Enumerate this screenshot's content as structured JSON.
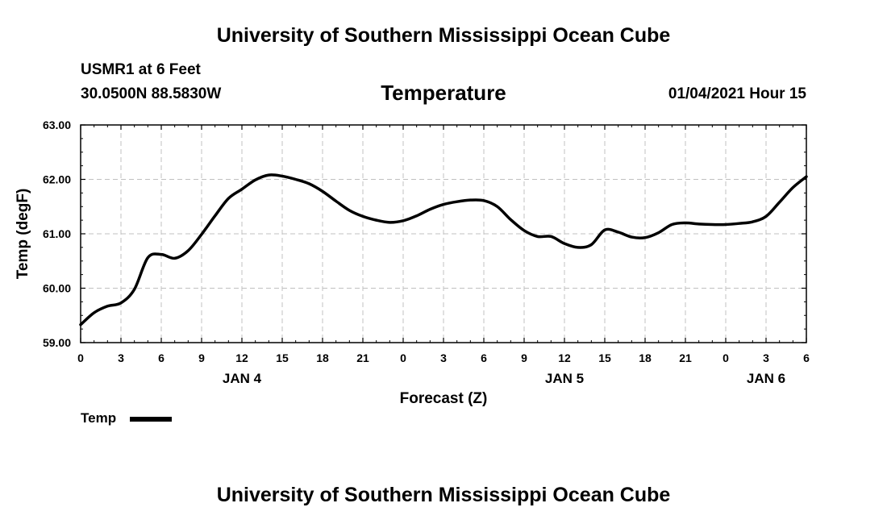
{
  "header": {
    "top_title": "University of Southern Mississippi Ocean Cube",
    "station": "USMR1 at 6 Feet",
    "coords": "30.0500N 88.5830W",
    "timestamp": "01/04/2021 Hour 15",
    "bottom_title": "University of Southern Mississippi Ocean Cube"
  },
  "colors": {
    "line": "#000000",
    "grid": "#c0c0c0"
  },
  "chart_data": {
    "type": "line",
    "title": "Temperature",
    "xlabel": "Forecast (Z)",
    "ylabel": "Temp (degF)",
    "ylim": [
      59.0,
      63.0
    ],
    "xlim": [
      0,
      54
    ],
    "y_ticks": [
      "59.00",
      "60.00",
      "61.00",
      "62.00",
      "63.00"
    ],
    "x_tick_hours": [
      0,
      3,
      6,
      9,
      12,
      15,
      18,
      21,
      24,
      27,
      30,
      33,
      36,
      39,
      42,
      45,
      48,
      51,
      54
    ],
    "x_tick_labels": [
      "0",
      "3",
      "6",
      "9",
      "12",
      "15",
      "18",
      "21",
      "0",
      "3",
      "6",
      "9",
      "12",
      "15",
      "18",
      "21",
      "0",
      "3",
      "6"
    ],
    "date_labels": [
      {
        "hour": 12,
        "label": "JAN 4"
      },
      {
        "hour": 36,
        "label": "JAN 5"
      },
      {
        "hour": 51,
        "label": "JAN 6"
      }
    ],
    "grid": true,
    "legend": {
      "position": "bottom-left",
      "entries": [
        "Temp"
      ]
    },
    "series": [
      {
        "name": "Temp",
        "x": [
          0,
          1,
          2,
          3,
          4,
          5,
          6,
          7,
          8,
          9,
          10,
          11,
          12,
          13,
          14,
          15,
          16,
          17,
          18,
          19,
          20,
          21,
          22,
          23,
          24,
          25,
          26,
          27,
          28,
          29,
          30,
          31,
          32,
          33,
          34,
          35,
          36,
          37,
          38,
          39,
          40,
          41,
          42,
          43,
          44,
          45,
          46,
          47,
          48,
          49,
          50,
          51,
          52,
          53,
          54
        ],
        "values": [
          59.33,
          59.55,
          59.67,
          59.73,
          59.98,
          60.56,
          60.62,
          60.55,
          60.69,
          60.99,
          61.33,
          61.65,
          61.82,
          61.99,
          62.08,
          62.06,
          62.0,
          61.92,
          61.78,
          61.6,
          61.43,
          61.32,
          61.25,
          61.21,
          61.24,
          61.33,
          61.45,
          61.54,
          61.59,
          61.62,
          61.61,
          61.5,
          61.26,
          61.06,
          60.95,
          60.95,
          60.82,
          60.75,
          60.8,
          61.07,
          61.03,
          60.94,
          60.93,
          61.02,
          61.17,
          61.2,
          61.18,
          61.17,
          61.17,
          61.19,
          61.22,
          61.32,
          61.58,
          61.85,
          62.05
        ]
      }
    ]
  }
}
